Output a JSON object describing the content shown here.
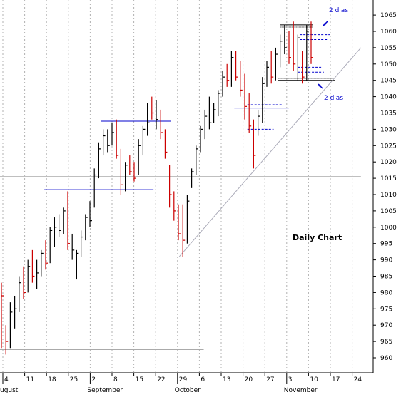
{
  "chart_data": {
    "type": "bar",
    "style": "ohlc",
    "title": "Daily Chart",
    "xlabel": "",
    "ylabel": "",
    "ylim": [
      955,
      1068
    ],
    "y_ticks": [
      960,
      965,
      970,
      975,
      980,
      985,
      990,
      995,
      1000,
      1005,
      1010,
      1015,
      1020,
      1025,
      1030,
      1035,
      1040,
      1045,
      1050,
      1055,
      1060,
      1065
    ],
    "grid": "vertical dotted",
    "x_ticks": [
      "4",
      "11",
      "18",
      "25",
      "2",
      "8",
      "15",
      "22",
      "29",
      "6",
      "13",
      "20",
      "27",
      "3",
      "10",
      "17",
      "24"
    ],
    "month_labels": [
      "ugust",
      "September",
      "October",
      "November"
    ],
    "colors": {
      "up": "#000000",
      "down": "#cc0000",
      "lines": "#0000cc",
      "support": "#aaaaaa"
    },
    "bars": [
      {
        "h": 983,
        "l": 963,
        "c": 979,
        "dir": "down"
      },
      {
        "h": 970,
        "l": 961,
        "c": 965,
        "dir": "down"
      },
      {
        "h": 977,
        "l": 963,
        "c": 974,
        "dir": "up"
      },
      {
        "h": 979,
        "l": 969,
        "c": 975,
        "dir": "up"
      },
      {
        "h": 985,
        "l": 974,
        "c": 983,
        "dir": "up"
      },
      {
        "h": 988,
        "l": 978,
        "c": 980,
        "dir": "down"
      },
      {
        "h": 990,
        "l": 980,
        "c": 988,
        "dir": "up"
      },
      {
        "h": 993,
        "l": 983,
        "c": 985,
        "dir": "down"
      },
      {
        "h": 990,
        "l": 981,
        "c": 986,
        "dir": "up"
      },
      {
        "h": 993,
        "l": 985,
        "c": 992,
        "dir": "up"
      },
      {
        "h": 996,
        "l": 987,
        "c": 989,
        "dir": "down"
      },
      {
        "h": 1000,
        "l": 989,
        "c": 999,
        "dir": "up"
      },
      {
        "h": 1003,
        "l": 994,
        "c": 1000,
        "dir": "up"
      },
      {
        "h": 1004,
        "l": 997,
        "c": 999,
        "dir": "up"
      },
      {
        "h": 1006,
        "l": 998,
        "c": 1005,
        "dir": "up"
      },
      {
        "h": 1011,
        "l": 993,
        "c": 995,
        "dir": "down"
      },
      {
        "h": 998,
        "l": 990,
        "c": 993,
        "dir": "up"
      },
      {
        "h": 993,
        "l": 984,
        "c": 992,
        "dir": "up"
      },
      {
        "h": 999,
        "l": 991,
        "c": 997,
        "dir": "up"
      },
      {
        "h": 1004,
        "l": 996,
        "c": 1003,
        "dir": "up"
      },
      {
        "h": 1008,
        "l": 1000,
        "c": 1002,
        "dir": "up"
      },
      {
        "h": 1018,
        "l": 1006,
        "c": 1016,
        "dir": "up"
      },
      {
        "h": 1026,
        "l": 1015,
        "c": 1024,
        "dir": "up"
      },
      {
        "h": 1030,
        "l": 1022,
        "c": 1028,
        "dir": "up"
      },
      {
        "h": 1030,
        "l": 1023,
        "c": 1025,
        "dir": "up"
      },
      {
        "h": 1032,
        "l": 1025,
        "c": 1029,
        "dir": "up"
      },
      {
        "h": 1033,
        "l": 1021,
        "c": 1022,
        "dir": "down"
      },
      {
        "h": 1024,
        "l": 1010,
        "c": 1013,
        "dir": "down"
      },
      {
        "h": 1020,
        "l": 1011,
        "c": 1019,
        "dir": "up"
      },
      {
        "h": 1022,
        "l": 1016,
        "c": 1017,
        "dir": "down"
      },
      {
        "h": 1020,
        "l": 1014,
        "c": 1015,
        "dir": "down"
      },
      {
        "h": 1027,
        "l": 1016,
        "c": 1025,
        "dir": "up"
      },
      {
        "h": 1031,
        "l": 1022,
        "c": 1030,
        "dir": "up"
      },
      {
        "h": 1038,
        "l": 1028,
        "c": 1032,
        "dir": "up"
      },
      {
        "h": 1040,
        "l": 1033,
        "c": 1035,
        "dir": "down"
      },
      {
        "h": 1039,
        "l": 1030,
        "c": 1033,
        "dir": "up"
      },
      {
        "h": 1036,
        "l": 1027,
        "c": 1029,
        "dir": "down"
      },
      {
        "h": 1030,
        "l": 1021,
        "c": 1023,
        "dir": "down"
      },
      {
        "h": 1019,
        "l": 1006,
        "c": 1010,
        "dir": "down"
      },
      {
        "h": 1011,
        "l": 1002,
        "c": 1005,
        "dir": "down"
      },
      {
        "h": 1007,
        "l": 996,
        "c": 998,
        "dir": "down"
      },
      {
        "h": 1007,
        "l": 991,
        "c": 996,
        "dir": "down"
      },
      {
        "h": 1010,
        "l": 995,
        "c": 1008,
        "dir": "up"
      },
      {
        "h": 1018,
        "l": 1012,
        "c": 1017,
        "dir": "up"
      },
      {
        "h": 1025,
        "l": 1016,
        "c": 1024,
        "dir": "up"
      },
      {
        "h": 1031,
        "l": 1023,
        "c": 1030,
        "dir": "up"
      },
      {
        "h": 1036,
        "l": 1027,
        "c": 1034,
        "dir": "up"
      },
      {
        "h": 1040,
        "l": 1030,
        "c": 1032,
        "dir": "up"
      },
      {
        "h": 1038,
        "l": 1032,
        "c": 1036,
        "dir": "up"
      },
      {
        "h": 1042,
        "l": 1034,
        "c": 1041,
        "dir": "up"
      },
      {
        "h": 1048,
        "l": 1040,
        "c": 1046,
        "dir": "up"
      },
      {
        "h": 1050,
        "l": 1043,
        "c": 1045,
        "dir": "down"
      },
      {
        "h": 1054,
        "l": 1043,
        "c": 1052,
        "dir": "up"
      },
      {
        "h": 1054,
        "l": 1045,
        "c": 1046,
        "dir": "down"
      },
      {
        "h": 1051,
        "l": 1040,
        "c": 1042,
        "dir": "down"
      },
      {
        "h": 1047,
        "l": 1033,
        "c": 1037,
        "dir": "down"
      },
      {
        "h": 1041,
        "l": 1029,
        "c": 1031,
        "dir": "down"
      },
      {
        "h": 1033,
        "l": 1018,
        "c": 1022,
        "dir": "down"
      },
      {
        "h": 1036,
        "l": 1028,
        "c": 1034,
        "dir": "up"
      },
      {
        "h": 1046,
        "l": 1032,
        "c": 1044,
        "dir": "up"
      },
      {
        "h": 1051,
        "l": 1043,
        "c": 1049,
        "dir": "up"
      },
      {
        "h": 1054,
        "l": 1044,
        "c": 1046,
        "dir": "down"
      },
      {
        "h": 1055,
        "l": 1045,
        "c": 1053,
        "dir": "up"
      },
      {
        "h": 1059,
        "l": 1049,
        "c": 1057,
        "dir": "up"
      },
      {
        "h": 1062,
        "l": 1053,
        "c": 1055,
        "dir": "up"
      },
      {
        "h": 1060,
        "l": 1050,
        "c": 1052,
        "dir": "down"
      },
      {
        "h": 1063,
        "l": 1048,
        "c": 1050,
        "dir": "down"
      },
      {
        "h": 1059,
        "l": 1045,
        "c": 1058,
        "dir": "up"
      },
      {
        "h": 1054,
        "l": 1044,
        "c": 1046,
        "dir": "down"
      },
      {
        "h": 1062,
        "l": 1045,
        "c": 1060,
        "dir": "up"
      },
      {
        "h": 1063,
        "l": 1050,
        "c": 1052,
        "dir": "down"
      }
    ],
    "annotations": [
      {
        "text": "2 dias"
      },
      {
        "text": "2 dias"
      }
    ]
  }
}
